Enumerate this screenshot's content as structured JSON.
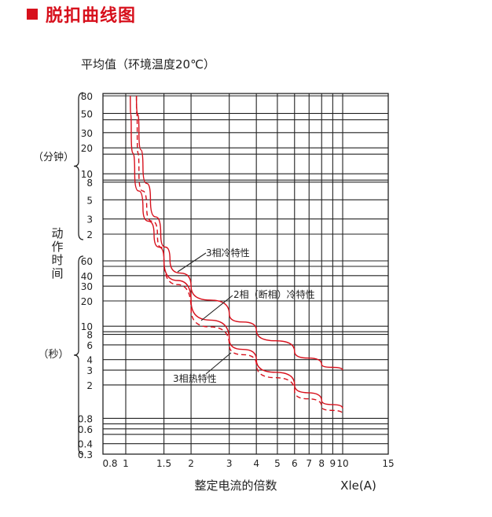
{
  "header": {
    "title": "脱扣曲线图",
    "accent": "#d7101c"
  },
  "chart_data": {
    "type": "line",
    "title": "平均值（环境温度20℃）",
    "xlabel": "整定电流的倍数",
    "xunit": "Xle(A)",
    "x_scale": "log",
    "x_ticks": [
      0.8,
      1,
      1.5,
      2,
      3,
      4,
      5,
      6,
      7,
      8,
      9,
      10,
      15
    ],
    "x_tick_labels": [
      "0.8",
      "1",
      "1.5",
      "2",
      "3",
      "4",
      "5",
      "6",
      "7",
      "8",
      "9",
      "10",
      "15"
    ],
    "xlim": [
      0.8,
      15
    ],
    "y_axis_title": "动作时间",
    "y_segments": [
      {
        "unit_label": "（分钟）",
        "unit": "min",
        "scale": "log",
        "range": [
          1,
          80
        ],
        "ticks": [
          2,
          3,
          5,
          8,
          10,
          20,
          30,
          50,
          80
        ],
        "tick_labels": [
          "2",
          "3",
          "5",
          "8",
          "10",
          "20",
          "30",
          "50",
          "80"
        ]
      },
      {
        "unit_label": "（秒）",
        "unit": "s",
        "scale": "log",
        "range": [
          0.3,
          60
        ],
        "ticks": [
          0.3,
          0.4,
          0.6,
          0.8,
          2,
          3,
          4,
          6,
          8,
          10,
          20,
          30,
          40,
          60
        ],
        "tick_labels": [
          "0.3",
          "0.4",
          "0.6",
          "0.8",
          "2",
          "3",
          "4",
          "6",
          "8",
          "10",
          "20",
          "30",
          "40",
          "60"
        ]
      }
    ],
    "grid": true,
    "color": "#d7101c",
    "series": [
      {
        "name": "3相冷特性",
        "style": "solid",
        "points": [
          {
            "x": 1.12,
            "t": 80,
            "unit": "min"
          },
          {
            "x": 1.15,
            "t": 30,
            "unit": "min"
          },
          {
            "x": 1.2,
            "t": 12,
            "unit": "min"
          },
          {
            "x": 1.3,
            "t": 5,
            "unit": "min"
          },
          {
            "x": 1.45,
            "t": 2,
            "unit": "min"
          },
          {
            "x": 1.6,
            "t": 1,
            "unit": "min"
          },
          {
            "x": 2,
            "t": 30,
            "unit": "s"
          },
          {
            "x": 3,
            "t": 14,
            "unit": "s"
          },
          {
            "x": 4,
            "t": 9,
            "unit": "s"
          },
          {
            "x": 6,
            "t": 5,
            "unit": "s"
          },
          {
            "x": 8,
            "t": 3.5,
            "unit": "s"
          },
          {
            "x": 10,
            "t": 3,
            "unit": "s"
          }
        ]
      },
      {
        "name": "2相（断相）冷特性",
        "style": "solid",
        "points": [
          {
            "x": 1.05,
            "t": 80,
            "unit": "min"
          },
          {
            "x": 1.06,
            "t": 30,
            "unit": "min"
          },
          {
            "x": 1.1,
            "t": 10,
            "unit": "min"
          },
          {
            "x": 1.2,
            "t": 4,
            "unit": "min"
          },
          {
            "x": 1.35,
            "t": 2,
            "unit": "min"
          },
          {
            "x": 1.5,
            "t": 1,
            "unit": "min"
          },
          {
            "x": 2,
            "t": 20,
            "unit": "s"
          },
          {
            "x": 3,
            "t": 7,
            "unit": "s"
          },
          {
            "x": 4,
            "t": 4,
            "unit": "s"
          },
          {
            "x": 6,
            "t": 2,
            "unit": "s"
          },
          {
            "x": 8,
            "t": 1.3,
            "unit": "s"
          },
          {
            "x": 10,
            "t": 1.05,
            "unit": "s"
          }
        ]
      },
      {
        "name": "3相热特性",
        "style": "dashed",
        "points": [
          {
            "x": 1.12,
            "t": 80,
            "unit": "min"
          },
          {
            "x": 1.13,
            "t": 30,
            "unit": "min"
          },
          {
            "x": 1.15,
            "t": 10,
            "unit": "min"
          },
          {
            "x": 1.25,
            "t": 4,
            "unit": "min"
          },
          {
            "x": 1.4,
            "t": 2,
            "unit": "min"
          },
          {
            "x": 1.5,
            "t": 1,
            "unit": "min"
          },
          {
            "x": 2,
            "t": 16,
            "unit": "s"
          },
          {
            "x": 3,
            "t": 6,
            "unit": "s"
          },
          {
            "x": 4,
            "t": 3.5,
            "unit": "s"
          },
          {
            "x": 6,
            "t": 1.7,
            "unit": "s"
          },
          {
            "x": 8,
            "t": 1.1,
            "unit": "s"
          },
          {
            "x": 10,
            "t": 0.9,
            "unit": "s"
          }
        ]
      }
    ],
    "annotations": [
      {
        "text": "3相冷特性",
        "series": 0
      },
      {
        "text": "2相（断相）冷特性",
        "series": 1
      },
      {
        "text": "3相热特性",
        "series": 2
      }
    ]
  }
}
